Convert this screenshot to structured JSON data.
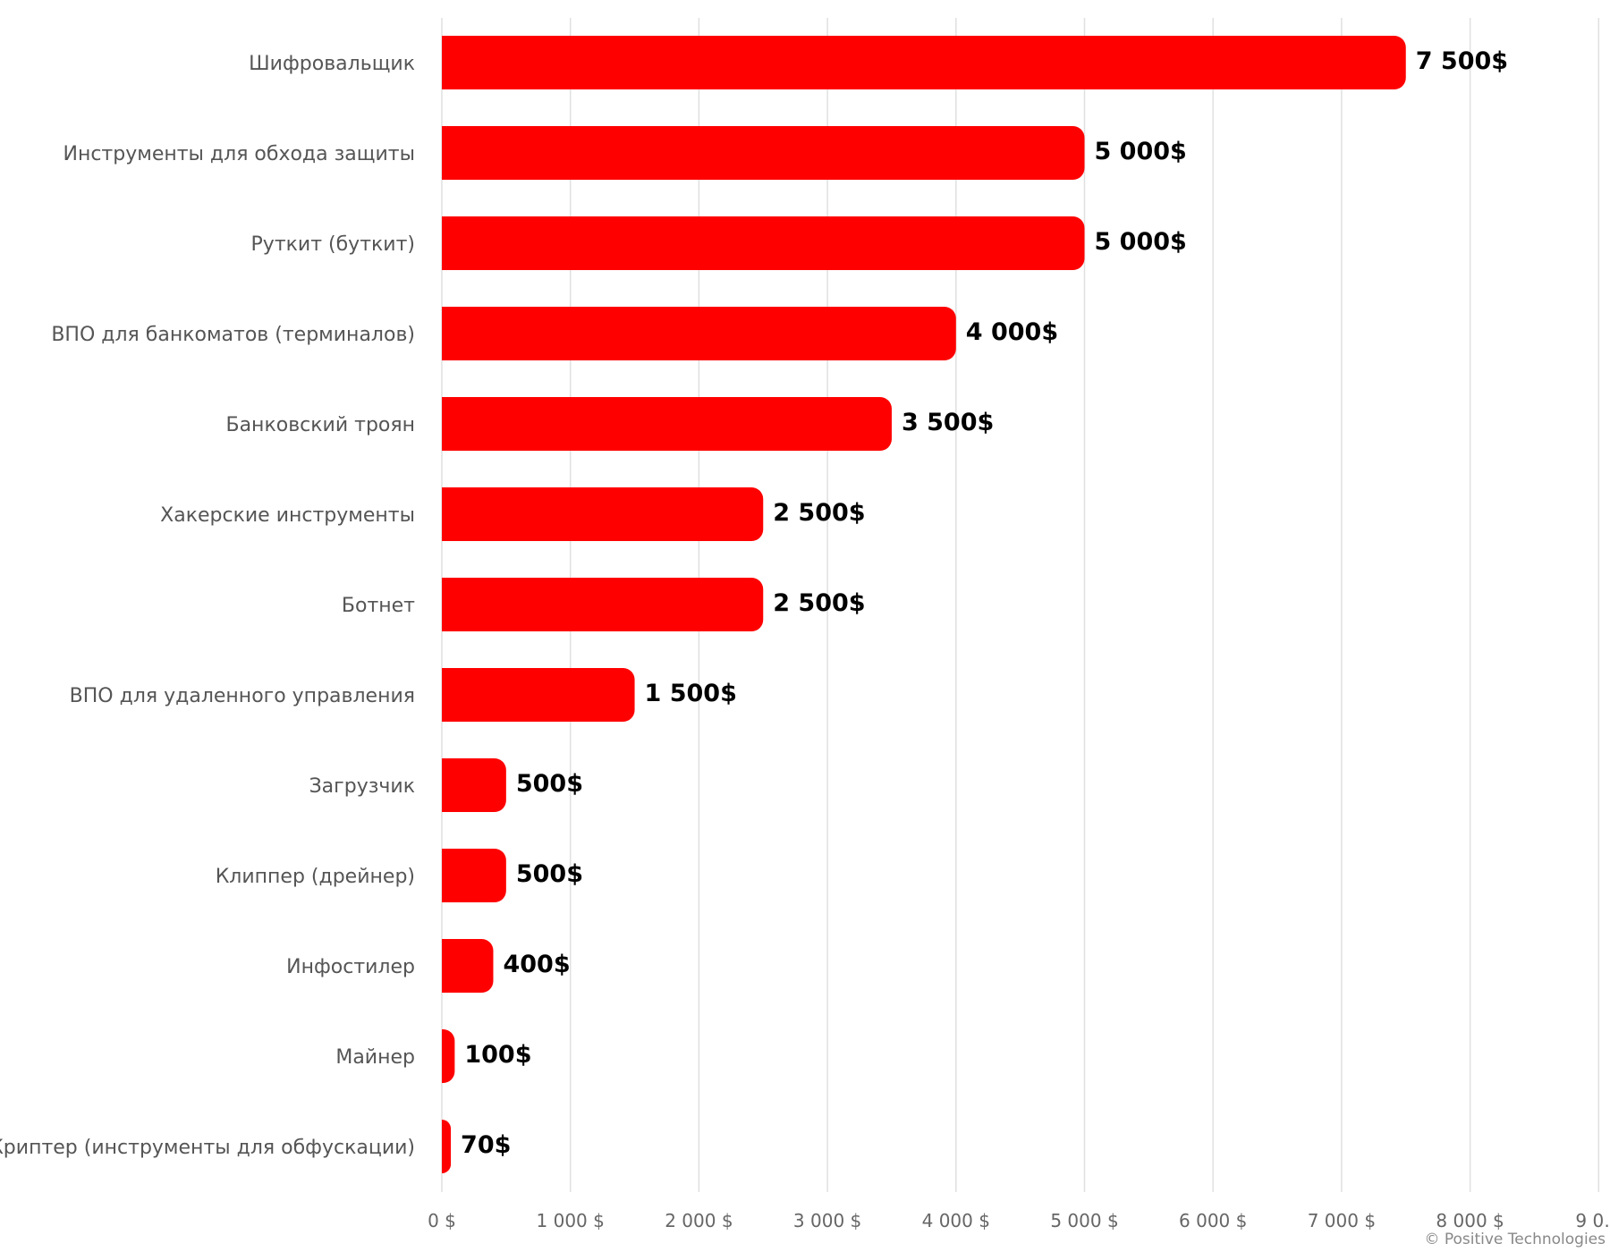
{
  "chart_data": {
    "type": "bar",
    "orientation": "horizontal",
    "title": "",
    "xlabel": "",
    "ylabel": "",
    "categories": [
      "Шифровальщик",
      "Инструменты для обхода защиты",
      "Руткит (буткит)",
      "ВПО для банкоматов (терминалов)",
      "Банковский троян",
      "Хакерские инструменты",
      "Ботнет",
      "ВПО для удаленного управления",
      "Загрузчик",
      "Клиппер (дрейнер)",
      "Инфостилер",
      "Майнер",
      "Криптер (инструменты для обфускации)"
    ],
    "values": [
      7500,
      5000,
      5000,
      4000,
      3500,
      2500,
      2500,
      1500,
      500,
      500,
      400,
      100,
      70
    ],
    "data_labels": [
      "7 500$",
      "5 000$",
      "5 000$",
      "4 000$",
      "3 500$",
      "2 500$",
      "2 500$",
      "1 500$",
      "500$",
      "500$",
      "400$",
      "100$",
      "70$"
    ],
    "xlim": [
      0,
      9000
    ],
    "ticks": [
      0,
      1000,
      2000,
      3000,
      4000,
      5000,
      6000,
      7000,
      8000,
      9000
    ],
    "tick_labels": [
      "0 $",
      "1 000 $",
      "2 000 $",
      "3 000 $",
      "4 000 $",
      "5 000 $",
      "6 000 $",
      "7 000 $",
      "8 000 $",
      "9 0…"
    ],
    "grid": true,
    "legend": "none",
    "bar_color": "#ff0000",
    "grid_color": "#e0e0e0"
  },
  "credit": "© Positive Technologies"
}
